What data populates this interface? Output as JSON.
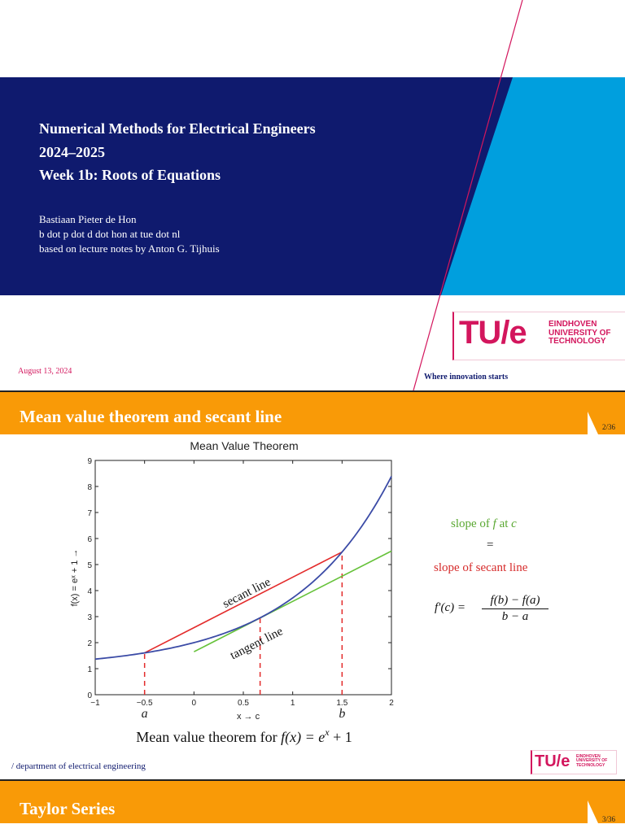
{
  "slide1": {
    "title_lines": [
      "Numerical Methods for Electrical Engineers",
      "2024–2025",
      "Week 1b: Roots of Equations"
    ],
    "author_lines": [
      "Bastiaan Pieter de Hon",
      "b dot p dot d dot hon at tue dot nl",
      "based on lecture notes by Anton G. Tijhuis"
    ],
    "date": "August 13, 2024",
    "tagline": "Where innovation starts",
    "logo": {
      "mark": "TU/e",
      "lines": [
        "EINDHOVEN",
        "UNIVERSITY OF",
        "TECHNOLOGY"
      ]
    },
    "colors": {
      "navy": "#0f1a6e",
      "cyan": "#009fde",
      "magenta": "#d3165d"
    }
  },
  "slide2": {
    "header": "Mean value theorem and secant line",
    "page": "2/36",
    "caption_prefix": "Mean value theorem for ",
    "caption_formula": "f(x) = e",
    "caption_exp": "x",
    "caption_suffix": " + 1",
    "slope_f_text": "slope of ",
    "slope_f_var": "f",
    "slope_at": " at ",
    "slope_c": "c",
    "equals": "=",
    "slope_secant": "slope of secant line",
    "formula_lhs": "f′(c) =",
    "formula_num": "f(b) − f(a)",
    "formula_den": "b − a",
    "department": "/ department of electrical engineering",
    "colors": {
      "orange": "#f99a07",
      "curve": "#3b4ba6",
      "secant": "#e32b2b",
      "tangent": "#66c23a"
    }
  },
  "slide3": {
    "header": "Taylor Series",
    "page": "3/36"
  },
  "chart_data": {
    "type": "line",
    "title": "Mean Value Theorem",
    "xlabel": "x → c",
    "ylabel": "f(x) = eˣ + 1 →",
    "xlim": [
      -1,
      2
    ],
    "ylim": [
      0,
      9
    ],
    "xticks": [
      -1,
      -0.5,
      0,
      0.5,
      1,
      1.5,
      2
    ],
    "xtick_labels": [
      "−1",
      "−0.5",
      "0",
      "0.5",
      "1",
      "1.5",
      "2"
    ],
    "yticks": [
      0,
      1,
      2,
      3,
      4,
      5,
      6,
      7,
      8,
      9
    ],
    "point_labels": {
      "a": -0.5,
      "c": 0.67,
      "b": 1.5
    },
    "point_label_text": {
      "a": "a",
      "c": "c",
      "b": "b"
    },
    "curve": {
      "name": "f(x) = e^x + 1",
      "x_from": -1,
      "x_to": 2
    },
    "secant": {
      "label": "secant line",
      "x": [
        -0.5,
        1.5
      ],
      "y": [
        1.607,
        5.482
      ]
    },
    "tangent": {
      "label": "tangent line",
      "x": [
        0,
        2
      ],
      "y": [
        1.65,
        5.52
      ]
    },
    "grid": false
  }
}
